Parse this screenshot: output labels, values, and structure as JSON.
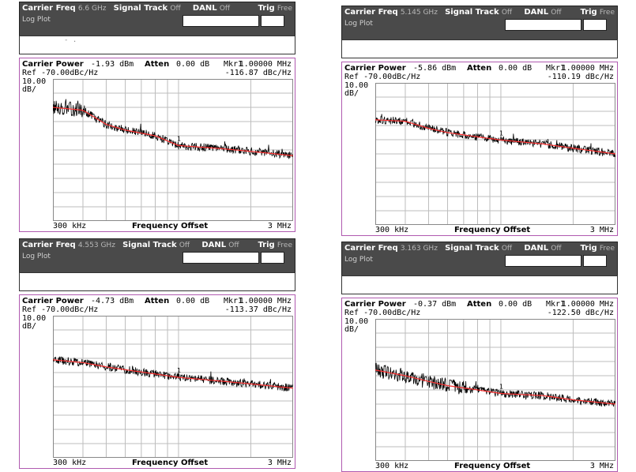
{
  "labels": {
    "carrier_freq": "Carrier Freq",
    "signal_track": "Signal Track",
    "off": "Off",
    "danl": "DANL",
    "trig": "Trig",
    "free": "Free",
    "log_plot": "Log Plot",
    "carrier_power": "Carrier Power",
    "atten": "Atten",
    "mkr": "Mkr1",
    "ref": "Ref -70.00dBc/Hz",
    "scale_div": "10.00",
    "scale_unit": "dB/",
    "x_start": "300 kHz",
    "x_label": "Frequency Offset",
    "x_end": "3 MHz",
    "marker_num": "1"
  },
  "colors": {
    "trace": "#000000",
    "smooth": "#ff3030",
    "grid": "#bdbdbd",
    "frame": "#b05ab0"
  },
  "panels": [
    {
      "carrier_freq": "6.6 GHz",
      "carrier_power": "-1.93 dBm",
      "atten": "0.00 dB",
      "mkr_freq": "1.00000 MHz",
      "mkr_level": "-116.87 dBc/Hz",
      "has_bar_text": true,
      "bar_text": "-    ."
    },
    {
      "carrier_freq": "5.145 GHz",
      "carrier_power": "-5.86 dBm",
      "atten": "0.00 dB",
      "mkr_freq": "1.00000 MHz",
      "mkr_level": "-110.19 dBc/Hz",
      "has_bar_text": false,
      "bar_text": ""
    },
    {
      "carrier_freq": "4.553 GHz",
      "carrier_power": "-4.73 dBm",
      "atten": "0.00 dB",
      "mkr_freq": "1.00000 MHz",
      "mkr_level": "-113.37 dBc/Hz",
      "has_bar_text": false,
      "bar_text": ""
    },
    {
      "carrier_freq": "3.163 GHz",
      "carrier_power": "-0.37 dBm",
      "atten": "0.00 dB",
      "mkr_freq": "1.00000 MHz",
      "mkr_level": "-122.50 dBc/Hz",
      "has_bar_text": false,
      "bar_text": ""
    }
  ],
  "chart_data": [
    {
      "type": "line",
      "x_scale": "log",
      "x_range_hz": [
        300000,
        3000000
      ],
      "ylabel": "10.00 dB/",
      "y_ref_dbc_hz": -70,
      "y_range_dbc_hz": [
        -70,
        -170
      ],
      "grid": true,
      "series": [
        {
          "x_hz": [
            300000,
            400000,
            500000,
            600000,
            800000,
            1000000,
            1500000,
            2000000,
            3000000
          ],
          "values": [
            -90,
            -92,
            -102,
            -106,
            -110,
            -116.87,
            -119,
            -121,
            -124
          ]
        }
      ]
    },
    {
      "type": "line",
      "x_scale": "log",
      "x_range_hz": [
        300000,
        3000000
      ],
      "ylabel": "10.00 dB/",
      "y_ref_dbc_hz": -70,
      "y_range_dbc_hz": [
        -70,
        -170
      ],
      "grid": true,
      "series": [
        {
          "x_hz": [
            300000,
            400000,
            500000,
            600000,
            800000,
            1000000,
            1500000,
            2000000,
            3000000
          ],
          "values": [
            -96,
            -97,
            -102,
            -105,
            -108,
            -110.19,
            -113,
            -116,
            -120
          ]
        }
      ]
    },
    {
      "type": "line",
      "x_scale": "log",
      "x_range_hz": [
        300000,
        3000000
      ],
      "ylabel": "10.00 dB/",
      "y_ref_dbc_hz": -70,
      "y_range_dbc_hz": [
        -70,
        -170
      ],
      "grid": true,
      "series": [
        {
          "x_hz": [
            300000,
            400000,
            500000,
            600000,
            800000,
            1000000,
            1500000,
            2000000,
            3000000
          ],
          "values": [
            -101,
            -103,
            -106,
            -108,
            -111,
            -113.37,
            -116,
            -118,
            -121
          ]
        }
      ]
    },
    {
      "type": "line",
      "x_scale": "log",
      "x_range_hz": [
        300000,
        3000000
      ],
      "ylabel": "10.00 dB/",
      "y_ref_dbc_hz": -70,
      "y_range_dbc_hz": [
        -70,
        -170
      ],
      "grid": true,
      "series": [
        {
          "x_hz": [
            300000,
            400000,
            500000,
            600000,
            800000,
            1000000,
            1500000,
            2000000,
            3000000
          ],
          "values": [
            -106,
            -110,
            -114,
            -117,
            -120,
            -122.5,
            -124,
            -127,
            -130
          ]
        }
      ]
    }
  ]
}
